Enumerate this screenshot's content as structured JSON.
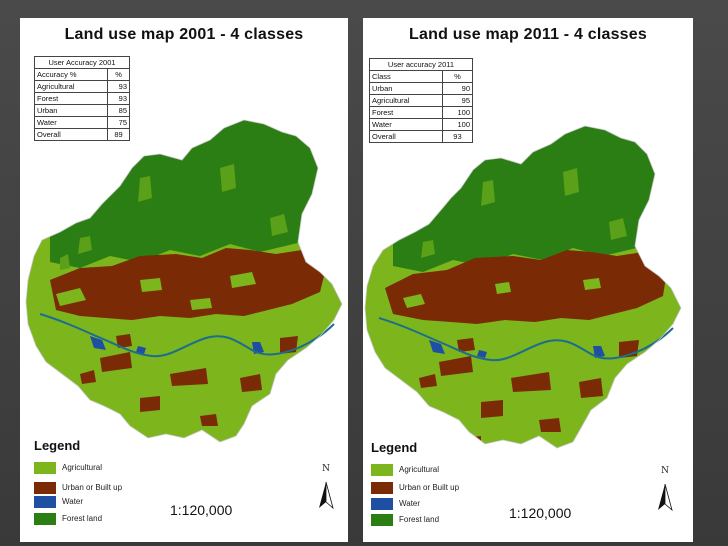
{
  "colors": {
    "agricultural": "#7cb51c",
    "urban": "#7a2a05",
    "water": "#1e4fa3",
    "forest": "#2a7e14",
    "river": "#1d6e8e"
  },
  "maps": [
    {
      "title": "Land use map 2001 - 4 classes",
      "accuracy_table": {
        "caption": "User Accuracy 2001",
        "header": [
          "Accuracy %",
          "%"
        ],
        "rows": [
          [
            "Agricultural",
            "93"
          ],
          [
            "Forest",
            "93"
          ],
          [
            "Urban",
            "85"
          ],
          [
            "Water",
            "75"
          ],
          [
            "Overall",
            "89"
          ]
        ]
      },
      "legend_title": "Legend",
      "legend": [
        "Agricultural",
        "Urban or Built up",
        "Water",
        "Forest land"
      ],
      "north_label": "N",
      "scale": "1:120,000"
    },
    {
      "title": "Land use map 2011 - 4 classes",
      "accuracy_table": {
        "caption": "User accuracy 2011",
        "header": [
          "Class",
          "%"
        ],
        "rows": [
          [
            "Urban",
            "90"
          ],
          [
            "Agricultural",
            "95"
          ],
          [
            "Forest",
            "100"
          ],
          [
            "Water",
            "100"
          ],
          [
            "Overall",
            "93"
          ]
        ]
      },
      "legend_title": "Legend",
      "legend": [
        "Agricultural",
        "Urban or Built up",
        "Water",
        "Forest land"
      ],
      "north_label": "N",
      "scale": "1:120,000"
    }
  ]
}
